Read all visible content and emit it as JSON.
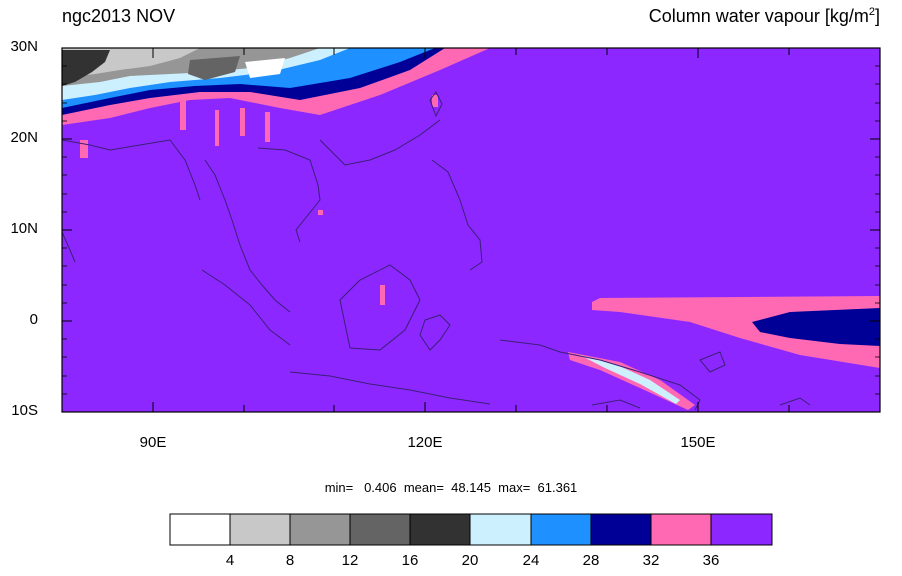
{
  "title_left": "ngc2013 NOV",
  "title_right": "Column water vapour [kg/m",
  "title_right_exp": "2",
  "title_right_close": "]",
  "lat_labels": [
    "30N",
    "20N",
    "10N",
    "0",
    "10S"
  ],
  "lon_labels": [
    "90E",
    "120E",
    "150E"
  ],
  "stats": {
    "text": "min=   0.406  mean=  48.145  max=  61.361"
  },
  "colorbar": {
    "colors": [
      "#ffffff",
      "#c8c8c8",
      "#969696",
      "#646464",
      "#323232",
      "#cdf0ff",
      "#1e90ff",
      "#000096",
      "#ff69b4",
      "#8c28ff"
    ],
    "ticks": [
      "4",
      "8",
      "12",
      "16",
      "20",
      "24",
      "28",
      "32",
      "36"
    ]
  },
  "colors": {
    "ocean_fill": "#8c28ff",
    "coast": "#3c1e78"
  }
}
